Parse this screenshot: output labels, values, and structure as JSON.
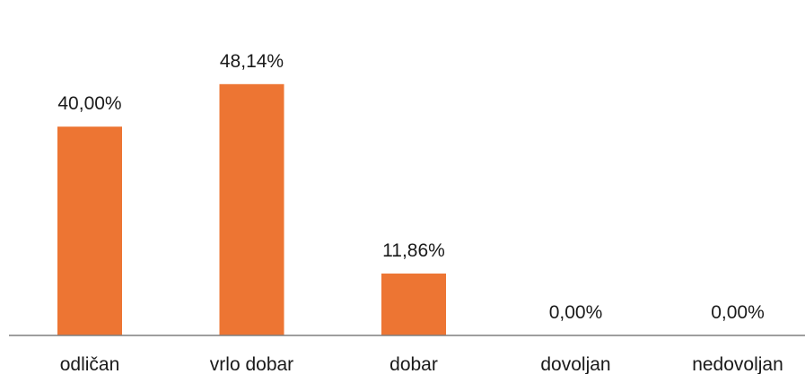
{
  "chart_data": {
    "type": "bar",
    "categories": [
      "odličan",
      "vrlo dobar",
      "dobar",
      "dovoljan",
      "nedovoljan"
    ],
    "values": [
      40.0,
      48.14,
      11.86,
      0.0,
      0.0
    ],
    "value_labels": [
      "40,00%",
      "48,14%",
      "11,86%",
      "0,00%",
      "0,00%"
    ],
    "title": "",
    "xlabel": "",
    "ylabel": "",
    "ylim": [
      0,
      50
    ],
    "grid": false,
    "legend": "none",
    "bar_color": "#ED7533",
    "axis_color": "#7f7f7f"
  }
}
